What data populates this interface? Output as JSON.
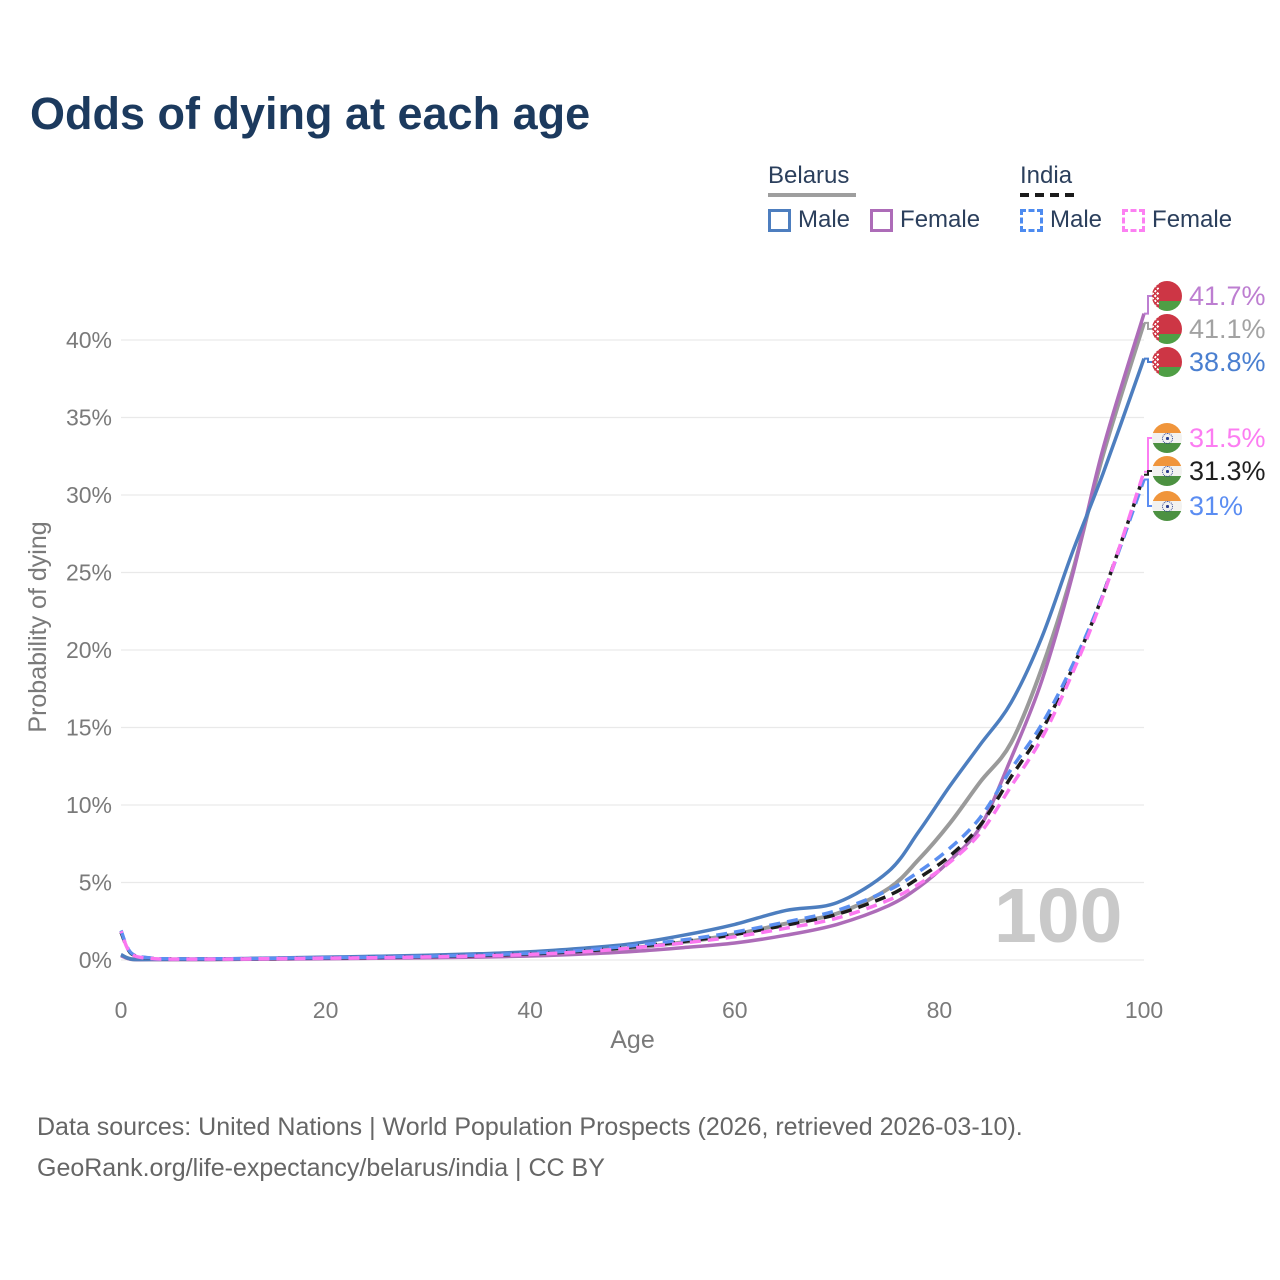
{
  "title": "Odds of dying at each age",
  "watermark": "100",
  "legend": {
    "groups": [
      {
        "country": "Belarus",
        "line_style": "solid",
        "underline_color": "#9e9e9e",
        "items": [
          {
            "label": "Male",
            "color": "#4d7ebf",
            "dashed": false
          },
          {
            "label": "Female",
            "color": "#ad6cb8",
            "dashed": false
          }
        ]
      },
      {
        "country": "India",
        "line_style": "dashed",
        "underline_color": "#1b1b1b",
        "items": [
          {
            "label": "Male",
            "color": "#4d8bf0",
            "dashed": true
          },
          {
            "label": "Female",
            "color": "#fc80f2",
            "dashed": true
          }
        ]
      }
    ]
  },
  "footer": {
    "line1": "Data sources: United Nations | World Population Prospects (2026, retrieved 2026-03-10).",
    "line2": "GeoRank.org/life-expectancy/belarus/india | CC BY"
  },
  "chart_data": {
    "type": "line",
    "title": "Odds of dying at each age",
    "xlabel": "Age",
    "ylabel": "Probability of dying",
    "xlim": [
      0,
      100
    ],
    "ylim_percent": [
      0,
      43
    ],
    "x_ticks": [
      0,
      20,
      40,
      60,
      80,
      100
    ],
    "y_ticks_percent": [
      0,
      5,
      10,
      15,
      20,
      25,
      30,
      35,
      40
    ],
    "y_tick_labels": [
      "0%",
      "5%",
      "10%",
      "15%",
      "20%",
      "25%",
      "30%",
      "35%",
      "40%"
    ],
    "grid": "horizontal",
    "legend_position": "top-right",
    "hovered_age": "100",
    "series": [
      {
        "name": "Belarus Both sexes",
        "country": "Belarus",
        "sex": "both",
        "style": "solid",
        "color": "#9a9a9a",
        "width": 4,
        "end_label": "41.1%",
        "end_value": 41.1,
        "label_color": "#a2a2a2",
        "flag": "belarus",
        "points": [
          [
            0,
            0.32
          ],
          [
            1,
            0.06
          ],
          [
            3,
            0.04
          ],
          [
            5,
            0.04
          ],
          [
            10,
            0.05
          ],
          [
            15,
            0.09
          ],
          [
            20,
            0.13
          ],
          [
            25,
            0.17
          ],
          [
            30,
            0.22
          ],
          [
            35,
            0.29
          ],
          [
            40,
            0.39
          ],
          [
            45,
            0.55
          ],
          [
            50,
            0.78
          ],
          [
            55,
            1.15
          ],
          [
            60,
            1.65
          ],
          [
            65,
            2.35
          ],
          [
            70,
            3.0
          ],
          [
            75,
            4.6
          ],
          [
            78,
            6.5
          ],
          [
            81,
            8.8
          ],
          [
            84,
            11.5
          ],
          [
            87,
            14.0
          ],
          [
            90,
            18.8
          ],
          [
            93,
            25.0
          ],
          [
            96,
            32.6
          ],
          [
            100,
            41.1
          ]
        ]
      },
      {
        "name": "Belarus Female",
        "country": "Belarus",
        "sex": "female",
        "style": "solid",
        "color": "#ad6cb8",
        "width": 3.5,
        "end_label": "41.7%",
        "end_value": 41.7,
        "label_color": "#bd7ed1",
        "flag": "belarus",
        "points": [
          [
            0,
            0.28
          ],
          [
            1,
            0.05
          ],
          [
            3,
            0.03
          ],
          [
            5,
            0.03
          ],
          [
            10,
            0.04
          ],
          [
            15,
            0.06
          ],
          [
            20,
            0.08
          ],
          [
            25,
            0.11
          ],
          [
            30,
            0.14
          ],
          [
            35,
            0.19
          ],
          [
            40,
            0.26
          ],
          [
            45,
            0.38
          ],
          [
            50,
            0.55
          ],
          [
            55,
            0.8
          ],
          [
            60,
            1.1
          ],
          [
            65,
            1.6
          ],
          [
            70,
            2.3
          ],
          [
            75,
            3.5
          ],
          [
            78,
            4.7
          ],
          [
            81,
            6.4
          ],
          [
            84,
            8.6
          ],
          [
            87,
            13.0
          ],
          [
            90,
            18.0
          ],
          [
            93,
            24.8
          ],
          [
            96,
            33.0
          ],
          [
            100,
            41.7
          ]
        ]
      },
      {
        "name": "Belarus Male",
        "country": "Belarus",
        "sex": "male",
        "style": "solid",
        "color": "#4d7ebf",
        "width": 3.5,
        "end_label": "38.8%",
        "end_value": 38.8,
        "label_color": "#4a7fd0",
        "flag": "belarus",
        "points": [
          [
            0,
            0.35
          ],
          [
            1,
            0.06
          ],
          [
            3,
            0.04
          ],
          [
            5,
            0.05
          ],
          [
            10,
            0.07
          ],
          [
            15,
            0.13
          ],
          [
            20,
            0.19
          ],
          [
            25,
            0.24
          ],
          [
            30,
            0.31
          ],
          [
            35,
            0.4
          ],
          [
            40,
            0.53
          ],
          [
            45,
            0.75
          ],
          [
            50,
            1.05
          ],
          [
            55,
            1.6
          ],
          [
            60,
            2.3
          ],
          [
            65,
            3.2
          ],
          [
            70,
            3.7
          ],
          [
            75,
            5.7
          ],
          [
            78,
            8.3
          ],
          [
            81,
            11.2
          ],
          [
            84,
            13.9
          ],
          [
            87,
            16.6
          ],
          [
            90,
            20.8
          ],
          [
            93,
            26.3
          ],
          [
            96,
            31.4
          ],
          [
            100,
            38.8
          ]
        ]
      },
      {
        "name": "India Both sexes",
        "country": "India",
        "sex": "both",
        "style": "dashed",
        "color": "#1c1c1c",
        "width": 3.5,
        "end_label": "31.3%",
        "end_value": 31.3,
        "label_color": "#1f1f1f",
        "flag": "india",
        "points": [
          [
            0,
            1.8
          ],
          [
            1,
            0.42
          ],
          [
            3,
            0.11
          ],
          [
            5,
            0.07
          ],
          [
            10,
            0.07
          ],
          [
            15,
            0.1
          ],
          [
            20,
            0.13
          ],
          [
            25,
            0.17
          ],
          [
            30,
            0.22
          ],
          [
            35,
            0.29
          ],
          [
            40,
            0.4
          ],
          [
            45,
            0.57
          ],
          [
            50,
            0.85
          ],
          [
            55,
            1.2
          ],
          [
            60,
            1.65
          ],
          [
            65,
            2.25
          ],
          [
            70,
            2.95
          ],
          [
            75,
            4.15
          ],
          [
            78,
            5.3
          ],
          [
            81,
            6.7
          ],
          [
            84,
            8.7
          ],
          [
            87,
            11.8
          ],
          [
            90,
            14.8
          ],
          [
            93,
            18.8
          ],
          [
            96,
            23.6
          ],
          [
            100,
            31.3
          ]
        ]
      },
      {
        "name": "India Male",
        "country": "India",
        "sex": "male",
        "style": "dashed",
        "color": "#5b8ff0",
        "width": 3.5,
        "end_label": "31%",
        "end_value": 31.0,
        "label_color": "#5b8df2",
        "flag": "india",
        "points": [
          [
            0,
            1.9
          ],
          [
            1,
            0.45
          ],
          [
            3,
            0.12
          ],
          [
            5,
            0.08
          ],
          [
            10,
            0.08
          ],
          [
            15,
            0.11
          ],
          [
            20,
            0.15
          ],
          [
            25,
            0.19
          ],
          [
            30,
            0.24
          ],
          [
            35,
            0.32
          ],
          [
            40,
            0.44
          ],
          [
            45,
            0.62
          ],
          [
            50,
            0.92
          ],
          [
            55,
            1.3
          ],
          [
            60,
            1.8
          ],
          [
            65,
            2.45
          ],
          [
            70,
            3.2
          ],
          [
            75,
            4.5
          ],
          [
            78,
            5.7
          ],
          [
            81,
            7.2
          ],
          [
            84,
            9.2
          ],
          [
            87,
            12.3
          ],
          [
            90,
            15.2
          ],
          [
            93,
            19.0
          ],
          [
            96,
            23.6
          ],
          [
            100,
            31.0
          ]
        ]
      },
      {
        "name": "India Female",
        "country": "India",
        "sex": "female",
        "style": "dashed",
        "color": "#fb77f0",
        "width": 3.5,
        "end_label": "31.5%",
        "end_value": 31.5,
        "label_color": "#fc7df2",
        "flag": "india",
        "points": [
          [
            0,
            1.85
          ],
          [
            1,
            0.4
          ],
          [
            3,
            0.1
          ],
          [
            5,
            0.06
          ],
          [
            10,
            0.06
          ],
          [
            15,
            0.09
          ],
          [
            20,
            0.12
          ],
          [
            25,
            0.15
          ],
          [
            30,
            0.2
          ],
          [
            35,
            0.26
          ],
          [
            40,
            0.36
          ],
          [
            45,
            0.52
          ],
          [
            50,
            0.78
          ],
          [
            55,
            1.1
          ],
          [
            60,
            1.5
          ],
          [
            65,
            2.05
          ],
          [
            70,
            2.7
          ],
          [
            75,
            3.85
          ],
          [
            78,
            4.9
          ],
          [
            81,
            6.3
          ],
          [
            84,
            8.2
          ],
          [
            87,
            11.2
          ],
          [
            90,
            14.3
          ],
          [
            93,
            18.5
          ],
          [
            96,
            23.5
          ],
          [
            100,
            31.5
          ]
        ]
      }
    ],
    "end_labels_order": [
      "41.7%",
      "41.1%",
      "38.8%",
      "31.5%",
      "31.3%",
      "31%"
    ]
  }
}
